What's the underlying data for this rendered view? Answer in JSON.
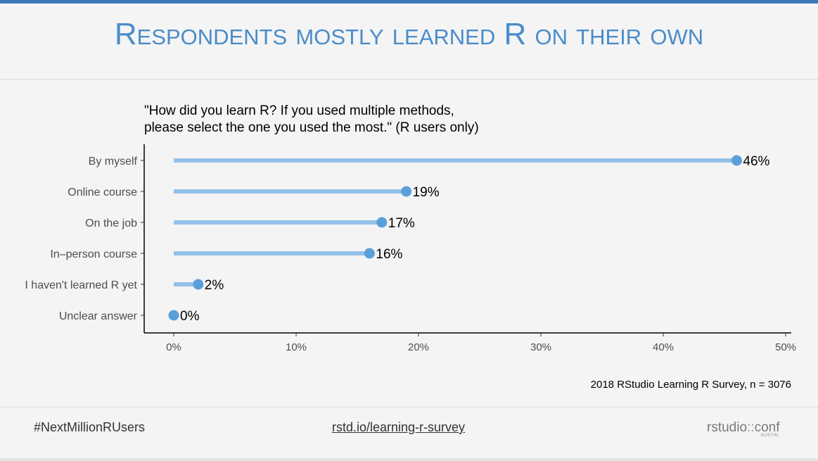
{
  "slide": {
    "title": "Respondents mostly learned R on their own",
    "footer_hashtag": "#NextMillionRUsers",
    "footer_link": "rstd.io/learning-r-survey",
    "logo_main": "rstudio",
    "logo_colons": "::",
    "logo_suffix": "conf",
    "logo_sub": "AUSTIN",
    "accent_color": "#4a8cca",
    "bar_color": "#93c1e8",
    "dot_color": "#5b9fd9"
  },
  "chart_data": {
    "type": "lollipop",
    "title_line1": "\"How did you learn R? If you used multiple methods,",
    "title_line2": "please select the one you used the most.\" (R users only)",
    "categories": [
      "By myself",
      "Online course",
      "On the job",
      "In–person course",
      "I haven't learned R yet",
      "Unclear answer"
    ],
    "values": [
      46,
      19,
      17,
      16,
      2,
      0
    ],
    "value_labels": [
      "46%",
      "19%",
      "17%",
      "16%",
      "2%",
      "0%"
    ],
    "x_ticks": [
      0,
      10,
      20,
      30,
      40,
      50
    ],
    "x_tick_labels": [
      "0%",
      "10%",
      "20%",
      "30%",
      "40%",
      "50%"
    ],
    "xlim": [
      0,
      50
    ],
    "grid": false,
    "caption": "2018 RStudio Learning R Survey, n = 3076"
  }
}
